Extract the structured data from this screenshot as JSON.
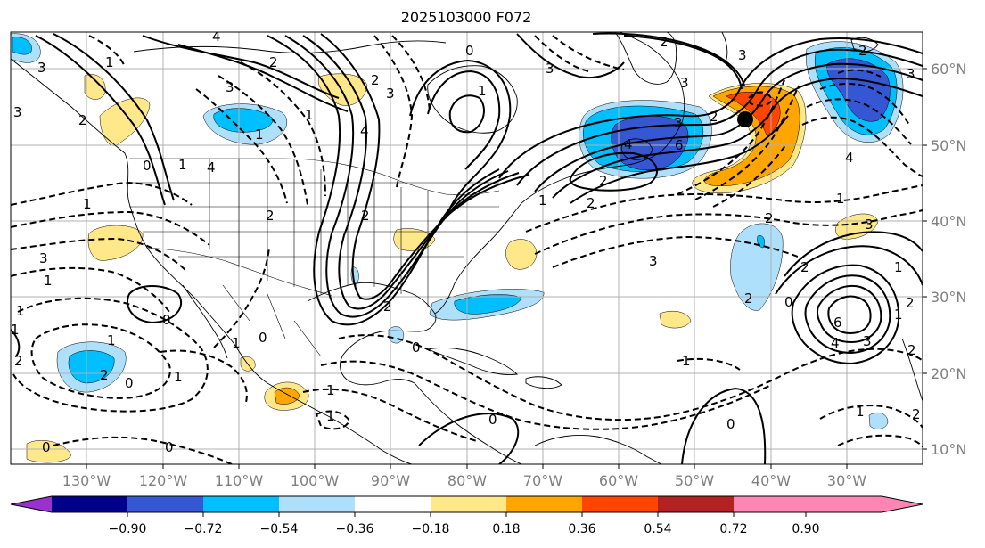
{
  "title": "2025103000 F072",
  "lon_labels": [
    "130°W",
    "120°W",
    "110°W",
    "100°W",
    "90°W",
    "80°W",
    "70°W",
    "60°W",
    "50°W",
    "40°W",
    "30°W"
  ],
  "lat_labels": [
    "60°N",
    "50°N",
    "40°N",
    "30°N",
    "20°N",
    "10°N"
  ],
  "colorbar": {
    "ticks": [
      "−0.90",
      "−0.72",
      "−0.54",
      "−0.36",
      "−0.18",
      "0.18",
      "0.36",
      "0.54",
      "0.72",
      "0.90"
    ],
    "colors": [
      "#9932cc",
      "#00008b",
      "#3657d3",
      "#00bfff",
      "#aee0fb",
      "#ffffff",
      "#ffe88a",
      "#ffa500",
      "#ff4500",
      "#b22222",
      "#ff85b4"
    ]
  },
  "contour_labels": [
    "4",
    "2",
    "3",
    "3",
    "4",
    "1",
    "1",
    "2",
    "1",
    "3",
    "4",
    "2",
    "1",
    "0",
    "1",
    "1",
    "1",
    "1",
    "2",
    "3",
    "2",
    "3",
    "0",
    "1",
    "0",
    "2",
    "0",
    "1",
    "2",
    "3",
    "2",
    "1",
    "3",
    "2",
    "6",
    "4",
    "3",
    "3",
    "2",
    "2",
    "3",
    "4",
    "3",
    "2",
    "2",
    "2",
    "1",
    "6",
    "4",
    "3",
    "2",
    "1",
    "0",
    "1",
    "2",
    "1",
    "0",
    "1",
    "0",
    "0",
    "1",
    "1",
    "2",
    "2",
    "3",
    "0",
    "1",
    "2",
    "0",
    "1",
    "0"
  ],
  "markers": [
    {
      "name": "low-center-marker",
      "lon": -43.5,
      "lat": 53.5
    }
  ]
}
